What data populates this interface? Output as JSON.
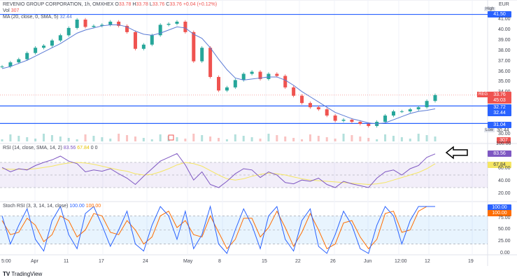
{
  "header": {
    "symbol": "REVENIO GROUP CORPORATION, 1h, OMXHEX",
    "open_label": "O",
    "open": "33.78",
    "high_label": "H",
    "high": "33.78",
    "low_label": "L",
    "low": "33.76",
    "close_label": "C",
    "close": "33.76",
    "change": "+0.04 (+0.12%)",
    "vol_label": "Vol",
    "vol": "307",
    "ma_label": "MA (20, close, 0, SMA, 5)",
    "ma_value": "32.44"
  },
  "rsi_legend": {
    "label": "RSI (14, close, SMA, 14, 2)",
    "rsi": "83.56",
    "sma": "67.84",
    "z1": "0",
    "z2": "0"
  },
  "stoch_legend": {
    "label": "Stoch RSI (3, 3, 14, 14, close)",
    "k": "100.00",
    "d": "100.00"
  },
  "price_axis": {
    "currency": "EUR",
    "ticks": [
      "41.00",
      "40.00",
      "39.00",
      "38.00",
      "37.00",
      "36.00",
      "35.00",
      "34.00",
      "30.00"
    ],
    "high_label": "High",
    "high": "41.50",
    "last": "33.76",
    "symbol_tag": "REGYV",
    "countdown": "45:03",
    "line1": "32.72",
    "ma": "32.44",
    "line2": "31.04",
    "low_label": "Low",
    "low": "30.44",
    "vol": "307"
  },
  "rsi_axis": {
    "ticks": [
      "100.00",
      "60.00",
      "40.00",
      "20.00"
    ],
    "rsi": "83.56",
    "sma": "67.84"
  },
  "stoch_axis": {
    "ticks": [
      "75.00",
      "50.00",
      "25.00",
      "0.00"
    ],
    "k": "100.00",
    "d": "100.00"
  },
  "time_axis": [
    "5:00",
    "Apr",
    "11",
    "17",
    "24",
    "May",
    "8",
    "15",
    "22",
    "26",
    "Jun",
    "12:00",
    "12",
    "19"
  ],
  "footer": {
    "brand": "TradingView"
  },
  "colors": {
    "up": "#26a69a",
    "down": "#ef5350",
    "ma": "#5b7bd5",
    "hline": "#2962ff",
    "rsi": "#7e57c2",
    "rsi_sma": "#f5e663",
    "stoch_k": "#2962ff",
    "stoch_d": "#ff6d00"
  },
  "chart_data": {
    "type": "line",
    "title": "REVENIO GROUP CORPORATION, 1h, OMXHEX",
    "ylim": [
      29.9,
      42.0
    ],
    "close": [
      36.5,
      36.9,
      37.2,
      37.8,
      38.3,
      38.5,
      39.0,
      39.5,
      40.2,
      41.0,
      40.3,
      40.4,
      40.5,
      40.8,
      40.4,
      39.8,
      38.2,
      38.6,
      39.5,
      40.5,
      40.6,
      40.8,
      39.8,
      37.0,
      38.3,
      35.5,
      34.2,
      34.5,
      35.2,
      35.8,
      36.0,
      35.3,
      35.8,
      35.6,
      34.5,
      33.7,
      33.0,
      32.6,
      32.4,
      31.8,
      31.3,
      31.4,
      31.2,
      31.0,
      30.8,
      31.2,
      31.8,
      32.2,
      32.2,
      32.4,
      32.6,
      33.2,
      33.76
    ],
    "ma": [
      36.3,
      36.5,
      36.8,
      37.1,
      37.5,
      37.9,
      38.3,
      38.7,
      39.2,
      39.7,
      40.0,
      40.2,
      40.4,
      40.5,
      40.5,
      40.3,
      39.9,
      39.6,
      39.5,
      39.7,
      40.0,
      40.3,
      40.2,
      39.6,
      39.2,
      38.3,
      37.2,
      36.2,
      35.4,
      35.2,
      35.3,
      35.4,
      35.5,
      35.5,
      35.2,
      34.7,
      34.1,
      33.6,
      33.1,
      32.6,
      32.1,
      31.8,
      31.5,
      31.3,
      31.1,
      31.0,
      31.1,
      31.4,
      31.7,
      32.0,
      32.2,
      32.3,
      32.44
    ],
    "hlines": [
      41.5,
      32.72,
      31.04
    ],
    "rsi": {
      "ylim": [
        0,
        100
      ],
      "bands": [
        30,
        70
      ],
      "values": [
        62,
        55,
        60,
        58,
        65,
        70,
        74,
        80,
        72,
        68,
        55,
        58,
        56,
        60,
        52,
        45,
        35,
        48,
        60,
        72,
        78,
        84,
        66,
        42,
        55,
        35,
        30,
        40,
        52,
        60,
        58,
        46,
        55,
        50,
        38,
        36,
        42,
        40,
        45,
        35,
        30,
        40,
        36,
        33,
        30,
        45,
        55,
        58,
        50,
        60,
        65,
        78,
        83.56
      ],
      "sma": [
        60,
        59,
        59,
        59,
        60,
        62,
        64,
        67,
        69,
        70,
        69,
        67,
        64,
        61,
        58,
        56,
        52,
        50,
        51,
        55,
        60,
        66,
        70,
        68,
        64,
        57,
        50,
        44,
        42,
        44,
        48,
        51,
        53,
        52,
        50,
        47,
        44,
        42,
        41,
        40,
        39,
        38,
        37,
        36,
        35,
        36,
        38,
        42,
        46,
        50,
        54,
        60,
        67.84
      ]
    },
    "stoch_rsi": {
      "ylim": [
        0,
        100
      ],
      "bands": [
        20,
        80
      ],
      "k": [
        80,
        20,
        60,
        95,
        30,
        5,
        70,
        100,
        40,
        10,
        85,
        100,
        60,
        15,
        50,
        90,
        20,
        5,
        60,
        100,
        80,
        30,
        90,
        10,
        40,
        100,
        20,
        0,
        50,
        95,
        60,
        10,
        80,
        100,
        30,
        5,
        70,
        95,
        15,
        0,
        40,
        90,
        60,
        10,
        0,
        60,
        100,
        80,
        20,
        70,
        100,
        100,
        100
      ],
      "d": [
        70,
        40,
        45,
        75,
        60,
        25,
        40,
        80,
        70,
        35,
        50,
        85,
        80,
        45,
        40,
        70,
        50,
        20,
        35,
        80,
        90,
        55,
        70,
        40,
        35,
        80,
        45,
        10,
        30,
        75,
        75,
        35,
        55,
        90,
        55,
        15,
        45,
        85,
        50,
        10,
        20,
        65,
        70,
        35,
        10,
        30,
        85,
        90,
        45,
        50,
        90,
        100,
        100
      ]
    }
  }
}
